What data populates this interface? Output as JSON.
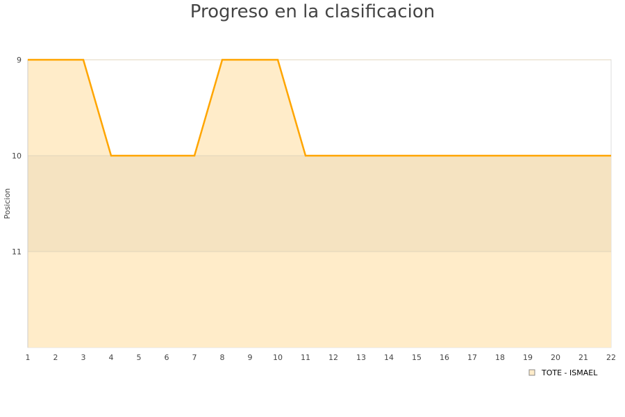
{
  "chart_data": {
    "type": "area",
    "title": "Progreso en la clasificacion",
    "ylabel": "Posicion",
    "xlabel": "",
    "x": [
      1,
      2,
      3,
      4,
      5,
      6,
      7,
      8,
      9,
      10,
      11,
      12,
      13,
      14,
      15,
      16,
      17,
      18,
      19,
      20,
      21,
      22
    ],
    "series": [
      {
        "name": "TOTE - ISMAEL",
        "values": [
          9,
          9,
          9,
          10,
          10,
          10,
          10,
          9,
          9,
          9,
          10,
          10,
          10,
          10,
          10,
          10,
          10,
          10,
          10,
          10,
          10,
          10
        ],
        "color": "#ffa500"
      }
    ],
    "ylim": [
      12,
      9
    ],
    "y_inverted": true,
    "yticks": [
      9,
      10,
      11
    ],
    "xlim": [
      1,
      22
    ],
    "highlight_band": [
      10,
      11
    ],
    "fill_color": "#ffecc9",
    "band_color": "#f5e3c1",
    "grid": true,
    "legend_position": "bottom-right"
  }
}
